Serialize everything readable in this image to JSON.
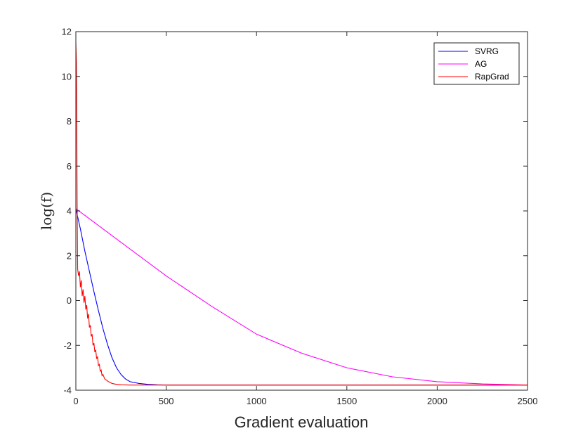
{
  "chart_data": {
    "type": "line",
    "title": "",
    "xlabel": "Gradient evaluation",
    "ylabel": "log(f)",
    "xlim": [
      0,
      2500
    ],
    "ylim": [
      -4,
      12
    ],
    "x_ticks": [
      0,
      500,
      1000,
      1500,
      2000,
      2500
    ],
    "y_ticks": [
      -4,
      -2,
      0,
      2,
      4,
      6,
      8,
      10,
      12
    ],
    "grid": false,
    "legend_position": "top-right",
    "series": [
      {
        "name": "SVRG",
        "color": "#0000ff",
        "points": [
          [
            0,
            4.1
          ],
          [
            25,
            3.2
          ],
          [
            50,
            2.2
          ],
          [
            75,
            1.3
          ],
          [
            100,
            0.4
          ],
          [
            125,
            -0.45
          ],
          [
            150,
            -1.25
          ],
          [
            175,
            -1.95
          ],
          [
            200,
            -2.55
          ],
          [
            225,
            -3.0
          ],
          [
            250,
            -3.3
          ],
          [
            275,
            -3.5
          ],
          [
            300,
            -3.62
          ],
          [
            350,
            -3.7
          ],
          [
            400,
            -3.74
          ],
          [
            450,
            -3.76
          ],
          [
            500,
            -3.77
          ],
          [
            1000,
            -3.77
          ],
          [
            1500,
            -3.77
          ],
          [
            2000,
            -3.77
          ],
          [
            2500,
            -3.77
          ]
        ]
      },
      {
        "name": "AG",
        "color": "#ff00ff",
        "points": [
          [
            0,
            4.1
          ],
          [
            250,
            2.6
          ],
          [
            500,
            1.1
          ],
          [
            750,
            -0.25
          ],
          [
            1000,
            -1.5
          ],
          [
            1250,
            -2.35
          ],
          [
            1500,
            -3.0
          ],
          [
            1750,
            -3.4
          ],
          [
            2000,
            -3.62
          ],
          [
            2250,
            -3.72
          ],
          [
            2500,
            -3.77
          ]
        ]
      },
      {
        "name": "RapGrad",
        "color": "#ff0000",
        "points": [
          [
            0,
            11.5
          ],
          [
            3,
            10.6
          ],
          [
            5,
            8.2
          ],
          [
            7,
            4.5
          ],
          [
            10,
            1.4
          ],
          [
            15,
            1.1
          ],
          [
            20,
            1.3
          ],
          [
            25,
            0.6
          ],
          [
            30,
            0.9
          ],
          [
            35,
            0.2
          ],
          [
            40,
            0.5
          ],
          [
            45,
            -0.1
          ],
          [
            50,
            0.2
          ],
          [
            55,
            -0.4
          ],
          [
            60,
            -0.2
          ],
          [
            65,
            -0.8
          ],
          [
            70,
            -0.6
          ],
          [
            75,
            -1.2
          ],
          [
            80,
            -1.1
          ],
          [
            85,
            -1.6
          ],
          [
            90,
            -1.5
          ],
          [
            95,
            -2.0
          ],
          [
            100,
            -1.9
          ],
          [
            105,
            -2.3
          ],
          [
            110,
            -2.2
          ],
          [
            115,
            -2.6
          ],
          [
            120,
            -2.5
          ],
          [
            125,
            -2.9
          ],
          [
            130,
            -2.85
          ],
          [
            135,
            -3.15
          ],
          [
            140,
            -3.1
          ],
          [
            145,
            -3.35
          ],
          [
            150,
            -3.3
          ],
          [
            160,
            -3.5
          ],
          [
            170,
            -3.55
          ],
          [
            180,
            -3.62
          ],
          [
            190,
            -3.65
          ],
          [
            200,
            -3.7
          ],
          [
            225,
            -3.74
          ],
          [
            250,
            -3.76
          ],
          [
            300,
            -3.77
          ],
          [
            500,
            -3.77
          ],
          [
            1000,
            -3.77
          ],
          [
            1500,
            -3.77
          ],
          [
            2000,
            -3.77
          ],
          [
            2500,
            -3.77
          ]
        ]
      }
    ]
  }
}
